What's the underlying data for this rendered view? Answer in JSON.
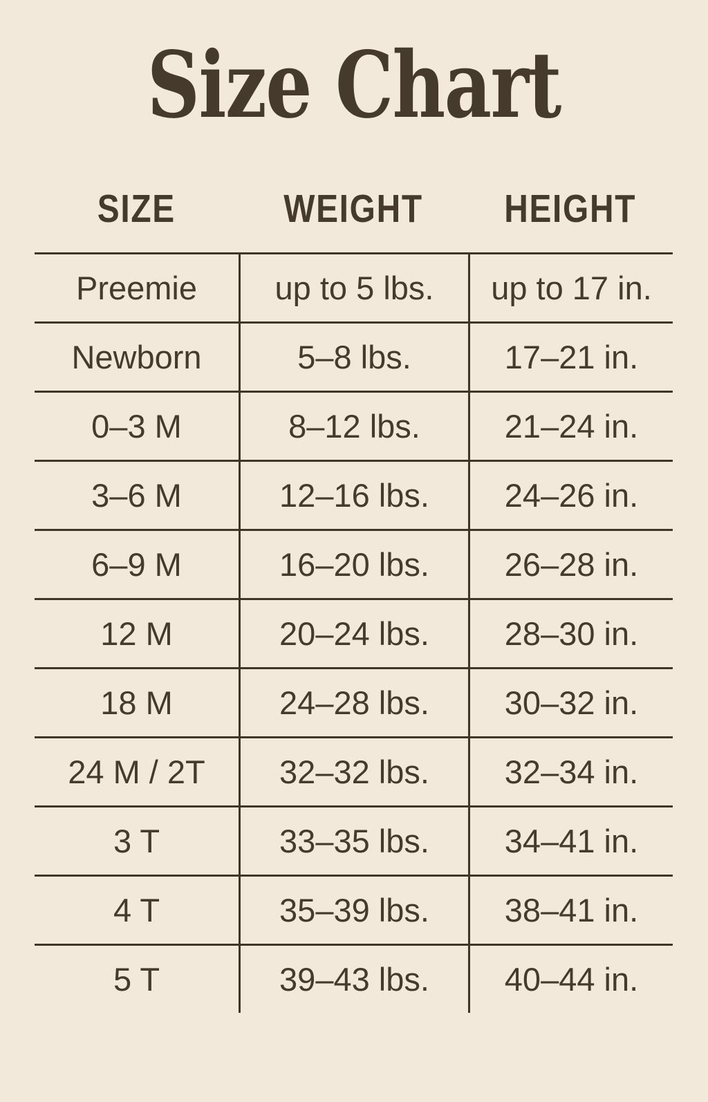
{
  "chart_data": {
    "type": "table",
    "title": "Size Chart",
    "columns": [
      "SIZE",
      "WEIGHT",
      "HEIGHT"
    ],
    "rows": [
      [
        "Preemie",
        "up to 5 lbs.",
        "up to 17 in."
      ],
      [
        "Newborn",
        "5–8 lbs.",
        "17–21 in."
      ],
      [
        "0–3 M",
        "8–12 lbs.",
        "21–24 in."
      ],
      [
        "3–6 M",
        "12–16 lbs.",
        "24–26 in."
      ],
      [
        "6–9 M",
        "16–20 lbs.",
        "26–28 in."
      ],
      [
        "12 M",
        "20–24 lbs.",
        "28–30 in."
      ],
      [
        "18 M",
        "24–28 lbs.",
        "30–32 in."
      ],
      [
        "24 M / 2T",
        "32–32 lbs.",
        "32–34 in."
      ],
      [
        "3 T",
        "33–35 lbs.",
        "34–41 in."
      ],
      [
        "4 T",
        "35–39 lbs.",
        "38–41 in."
      ],
      [
        "5 T",
        "39–43 lbs.",
        "40–44 in."
      ]
    ],
    "layout": {
      "grid": "horizontal row separators and vertical column dividers, no outer bottom border",
      "header_outside_grid": true
    }
  },
  "colors": {
    "background": "#f2e9db",
    "text": "#453a2c",
    "line": "#3f3528"
  }
}
